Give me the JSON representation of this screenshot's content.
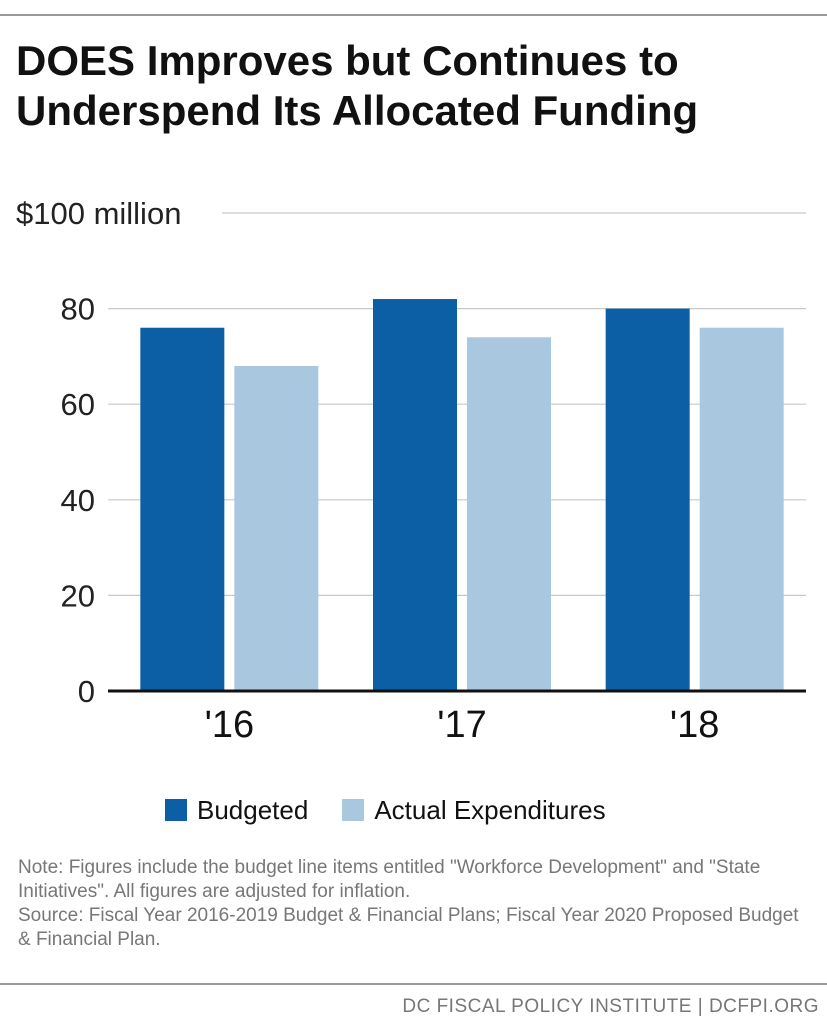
{
  "title": "DOES Improves but Continues to Underspend Its Allocated Funding",
  "chart_data": {
    "type": "bar",
    "categories": [
      "'16",
      "'17",
      "'18"
    ],
    "series": [
      {
        "name": "Budgeted",
        "values": [
          76,
          82,
          80
        ],
        "color": "#0d5fa5"
      },
      {
        "name": "Actual Expenditures",
        "values": [
          68,
          74,
          76
        ],
        "color": "#a9c7df"
      }
    ],
    "ylim": [
      0,
      100
    ],
    "yticks": [
      0,
      20,
      40,
      60,
      80,
      100
    ],
    "ytick_labels": [
      "0",
      "20",
      "40",
      "60",
      "80",
      "$100 million"
    ],
    "grid": true,
    "legend_position": "bottom"
  },
  "legend": {
    "items": [
      "Budgeted",
      "Actual Expenditures"
    ]
  },
  "note": {
    "line1": "Note: Figures include the budget line items entitled \"Workforce Development\" and \"State Initiatives\". All figures are adjusted for inflation.",
    "line2": "Source: Fiscal Year 2016-2019 Budget & Financial Plans; Fiscal Year 2020 Proposed Budget & Financial Plan."
  },
  "footer": "DC FISCAL POLICY INSTITUTE | DCFPI.ORG"
}
